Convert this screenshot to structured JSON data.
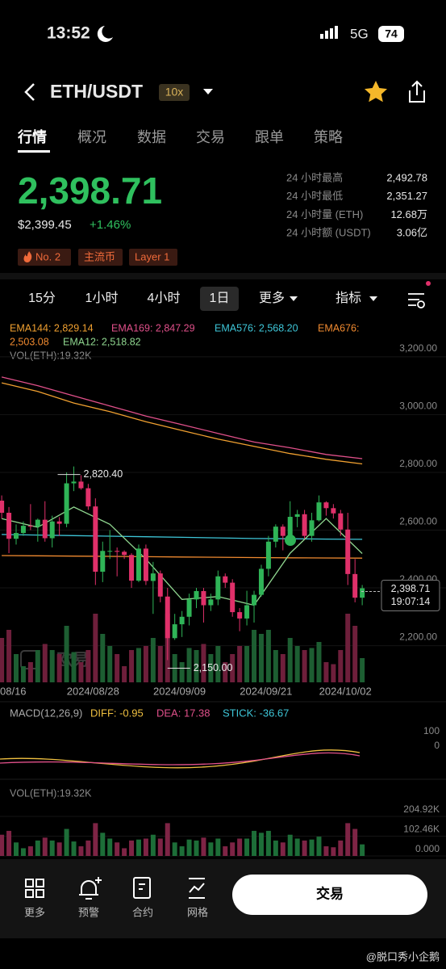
{
  "status": {
    "time": "13:52",
    "network": "5G",
    "battery": "74"
  },
  "header": {
    "pair": "ETH/USDT",
    "leverage": "10x"
  },
  "tabs": [
    "行情",
    "概况",
    "数据",
    "交易",
    "跟单",
    "策略"
  ],
  "price": {
    "last": "2,398.71",
    "usd": "$2,399.45",
    "change": "+1.46%"
  },
  "stats": [
    {
      "label": "24 小时最高",
      "value": "2,492.78"
    },
    {
      "label": "24 小时最低",
      "value": "2,351.27"
    },
    {
      "label": "24 小时量 (ETH)",
      "value": "12.68万"
    },
    {
      "label": "24 小时额 (USDT)",
      "value": "3.06亿"
    }
  ],
  "tags": [
    "No. 2",
    "主流币",
    "Layer 1"
  ],
  "intervals": [
    "15分",
    "1小时",
    "4小时",
    "1日",
    "更多",
    "指标"
  ],
  "chart": {
    "ema_legend": [
      "EMA144: 2,829.14",
      "EMA169: 2,847.29",
      "EMA576: 2,568.20",
      "EMA676:",
      "2,503.08",
      "EMA12: 2,518.82"
    ],
    "vol_legend": "VOL(ETH):19.32K",
    "ema_x": [
      0,
      5,
      10,
      15,
      20,
      25,
      30,
      35,
      40,
      45,
      50
    ],
    "ema": [
      {
        "color": "#f0a030",
        "values": [
          3110,
          3080,
          3040,
          3010,
          2975,
          2945,
          2915,
          2890,
          2865,
          2845,
          2829.14
        ]
      },
      {
        "color": "#e0508a",
        "values": [
          3130,
          3100,
          3065,
          3030,
          2995,
          2965,
          2935,
          2905,
          2885,
          2862,
          2847.29
        ]
      },
      {
        "color": "#3ec6d8",
        "values": [
          2585,
          2583,
          2581,
          2579,
          2577,
          2575,
          2573,
          2571,
          2570,
          2569,
          2568.2
        ]
      },
      {
        "color": "#f08a30",
        "values": [
          2512,
          2511,
          2510,
          2509,
          2508,
          2507,
          2506,
          2505,
          2504,
          2503.5,
          2503.08
        ]
      },
      {
        "color": "#8fd68f",
        "values": [
          2640,
          2610,
          2680,
          2620,
          2500,
          2360,
          2370,
          2340,
          2520,
          2640,
          2518.82
        ]
      }
    ],
    "candles": [
      [
        2702,
        2720,
        2640,
        2660
      ],
      [
        2660,
        2680,
        2520,
        2570
      ],
      [
        2570,
        2620,
        2550,
        2590
      ],
      [
        2590,
        2630,
        2580,
        2615
      ],
      [
        2615,
        2690,
        2600,
        2612
      ],
      [
        2612,
        2640,
        2560,
        2636
      ],
      [
        2636,
        2700,
        2560,
        2572
      ],
      [
        2572,
        2650,
        2540,
        2630
      ],
      [
        2630,
        2645,
        2580,
        2622
      ],
      [
        2622,
        2800,
        2610,
        2762
      ],
      [
        2762,
        2820.4,
        2735,
        2768
      ],
      [
        2768,
        2790,
        2740,
        2745
      ],
      [
        2745,
        2760,
        2670,
        2682
      ],
      [
        2682,
        2710,
        2410,
        2456
      ],
      [
        2456,
        2560,
        2420,
        2528
      ],
      [
        2528,
        2600,
        2500,
        2528
      ],
      [
        2528,
        2540,
        2440,
        2525
      ],
      [
        2525,
        2530,
        2500,
        2514
      ],
      [
        2514,
        2520,
        2400,
        2425
      ],
      [
        2425,
        2550,
        2420,
        2536
      ],
      [
        2536,
        2550,
        2410,
        2424
      ],
      [
        2424,
        2490,
        2310,
        2450
      ],
      [
        2450,
        2460,
        2350,
        2370
      ],
      [
        2370,
        2400,
        2150,
        2226
      ],
      [
        2226,
        2310,
        2220,
        2274
      ],
      [
        2274,
        2320,
        2230,
        2300
      ],
      [
        2300,
        2380,
        2270,
        2360
      ],
      [
        2360,
        2400,
        2330,
        2389
      ],
      [
        2389,
        2400,
        2280,
        2340
      ],
      [
        2340,
        2380,
        2320,
        2360
      ],
      [
        2360,
        2460,
        2340,
        2440
      ],
      [
        2440,
        2450,
        2400,
        2418
      ],
      [
        2418,
        2430,
        2300,
        2316
      ],
      [
        2316,
        2330,
        2250,
        2294
      ],
      [
        2294,
        2390,
        2270,
        2340
      ],
      [
        2340,
        2390,
        2280,
        2376
      ],
      [
        2376,
        2480,
        2370,
        2466
      ],
      [
        2466,
        2580,
        2440,
        2560
      ],
      [
        2560,
        2620,
        2540,
        2612
      ],
      [
        2612,
        2620,
        2530,
        2580
      ],
      [
        2580,
        2700,
        2570,
        2646
      ],
      [
        2646,
        2670,
        2610,
        2655
      ],
      [
        2655,
        2670,
        2570,
        2580
      ],
      [
        2580,
        2660,
        2560,
        2634
      ],
      [
        2634,
        2720,
        2630,
        2696
      ],
      [
        2696,
        2700,
        2650,
        2676
      ],
      [
        2676,
        2690,
        2640,
        2658
      ],
      [
        2658,
        2670,
        2580,
        2602
      ],
      [
        2602,
        2660,
        2410,
        2448
      ],
      [
        2448,
        2500,
        2350,
        2366
      ],
      [
        2366,
        2410,
        2340,
        2398.71
      ]
    ],
    "volumes": [
      110,
      130,
      70,
      40,
      50,
      80,
      95,
      80,
      70,
      140,
      75,
      50,
      80,
      170,
      120,
      90,
      70,
      40,
      80,
      85,
      90,
      110,
      90,
      170,
      70,
      50,
      85,
      80,
      95,
      70,
      90,
      50,
      70,
      90,
      90,
      130,
      120,
      130,
      80,
      70,
      110,
      90,
      80,
      85,
      100,
      50,
      45,
      80,
      170,
      140,
      60
    ],
    "up_color": "#2fb457",
    "down_color": "#e0306a",
    "ylim": [
      2073,
      3331
    ],
    "yticks": [
      {
        "value": 3200,
        "label": "3,200.00"
      },
      {
        "value": 3000,
        "label": "3,000.00"
      },
      {
        "value": 2800,
        "label": "2,800.00"
      },
      {
        "value": 2600,
        "label": "2,600.00"
      },
      {
        "value": 2400,
        "label": "2,400.00"
      },
      {
        "value": 2200,
        "label": "2,200.00"
      }
    ],
    "vol_ylim": [
      0,
      900
    ],
    "date_ticks": [
      {
        "index": 2,
        "label": "08/16"
      },
      {
        "index": 14,
        "label": "2024/08/28"
      },
      {
        "index": 26,
        "label": "2024/09/09"
      },
      {
        "index": 38,
        "label": "2024/09/21"
      },
      {
        "index": 49,
        "label": "2024/10/02"
      }
    ],
    "high": {
      "index": 10,
      "value": 2820.4,
      "label": "2,820.40"
    },
    "low": {
      "index": 23,
      "value": 2150,
      "label": "2,150.00"
    },
    "current": {
      "value": 2398.71,
      "label": "2,398.71",
      "time": "19:07:14"
    },
    "logo": "欧易"
  },
  "macd": {
    "title": "MACD(12,26,9)",
    "diff": "DIFF: -0.95",
    "dea": "DEA: 17.38",
    "stick": "STICK: -36.67",
    "ticks": [
      100,
      0
    ]
  },
  "volume_panel": {
    "title": "VOL(ETH):19.32K",
    "ylim": [
      0,
      272
    ],
    "yticks": [
      {
        "value": 204.92,
        "label": "204.92K"
      },
      {
        "value": 102.46,
        "label": "102.46K"
      },
      {
        "value": 0,
        "label": "0.000"
      }
    ]
  },
  "nav": [
    "更多",
    "预警",
    "合约",
    "网格"
  ],
  "action": "交易",
  "watermark": "@脱口秀小企鹅"
}
